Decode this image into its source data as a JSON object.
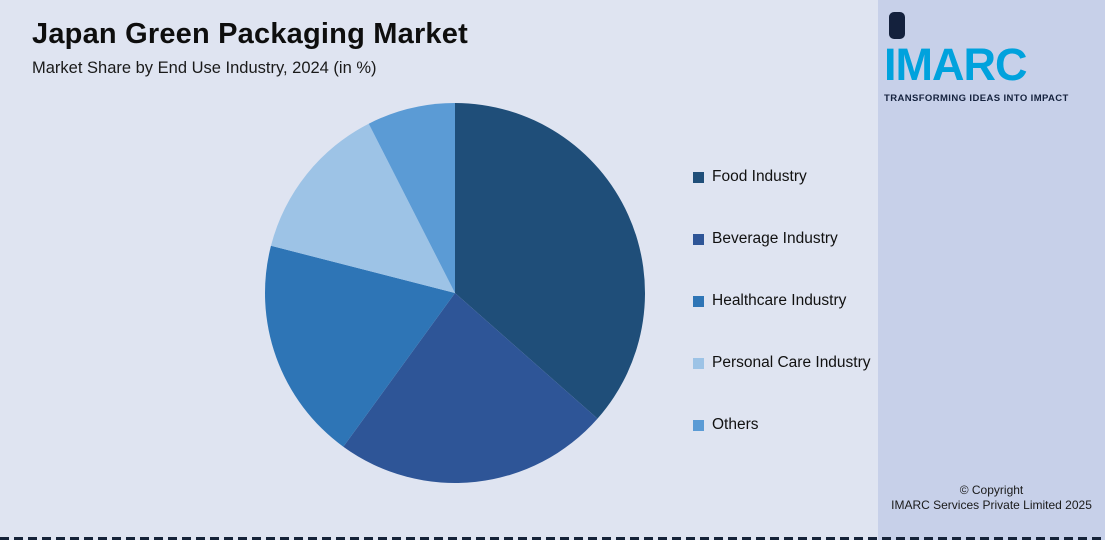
{
  "logo": {
    "text": "IMARC",
    "tagline": "TRANSFORMING IDEAS INTO IMPACT",
    "brand_color": "#00a2dd",
    "navy": "#14213d"
  },
  "chart_data": {
    "type": "pie",
    "title": "Japan Green Packaging Market",
    "subtitle": "Market Share by End Use Industry, 2024 (in %)",
    "start_angle_deg": 0,
    "direction": "clockwise",
    "legend_position": "right",
    "series": [
      {
        "name": "Food Industry",
        "value": 36.5,
        "color": "#1f4e79"
      },
      {
        "name": "Beverage Industry",
        "value": 23.5,
        "color": "#2e5597"
      },
      {
        "name": "Healthcare Industry",
        "value": 19.0,
        "color": "#2e75b6"
      },
      {
        "name": "Personal Care Industry",
        "value": 13.5,
        "color": "#9dc3e6"
      },
      {
        "name": "Others",
        "value": 7.5,
        "color": "#5b9bd5"
      }
    ]
  },
  "footer": {
    "copyright_line1": "© Copyright",
    "copyright_line2": "IMARC Services Private Limited 2025"
  }
}
